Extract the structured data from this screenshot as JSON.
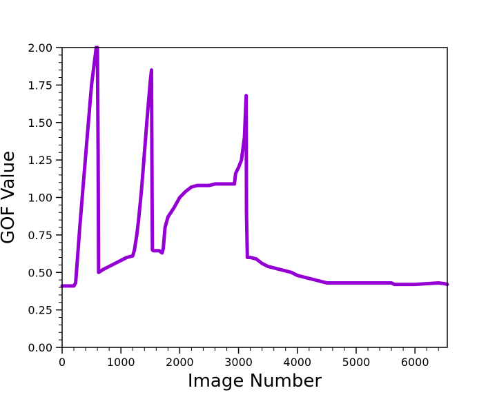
{
  "chart_data": {
    "type": "line",
    "title": "",
    "xlabel": "Image Number",
    "ylabel": "GOF Value",
    "xlim": [
      0,
      6550
    ],
    "ylim": [
      0,
      2.0
    ],
    "x_ticks": [
      0,
      1000,
      2000,
      3000,
      4000,
      5000,
      6000
    ],
    "x_tick_labels": [
      "0",
      "1000",
      "2000",
      "3000",
      "4000",
      "5000",
      "6000"
    ],
    "y_ticks": [
      0,
      0.25,
      0.5,
      0.75,
      1.0,
      1.25,
      1.5,
      1.75,
      2.0
    ],
    "y_tick_labels": [
      "0.00",
      "0.25",
      "0.50",
      "0.75",
      "1.00",
      "1.25",
      "1.50",
      "1.75",
      "2.00"
    ],
    "grid": false,
    "legend": "none",
    "line_color": "#9400d3",
    "series": [
      {
        "x": [
          0,
          100,
          200,
          230,
          300,
          400,
          500,
          580,
          600,
          612,
          620,
          700,
          800,
          900,
          1000,
          1100,
          1200,
          1230,
          1270,
          1300,
          1350,
          1400,
          1450,
          1500,
          1520,
          1530,
          1535,
          1550,
          1600,
          1650,
          1700,
          1720,
          1750,
          1800,
          1900,
          2000,
          2100,
          2200,
          2300,
          2400,
          2500,
          2600,
          2700,
          2800,
          2900,
          2930,
          2950,
          3000,
          3050,
          3100,
          3130,
          3135,
          3150,
          3200,
          3300,
          3400,
          3500,
          3600,
          3700,
          3800,
          3900,
          4000,
          4100,
          4200,
          4300,
          4400,
          4500,
          4600,
          4800,
          5000,
          5200,
          5400,
          5600,
          5650,
          5700,
          5800,
          6000,
          6200,
          6400,
          6500,
          6550
        ],
        "values": [
          0.41,
          0.41,
          0.41,
          0.43,
          0.8,
          1.28,
          1.75,
          2.0,
          2.0,
          1.3,
          0.5,
          0.52,
          0.54,
          0.56,
          0.58,
          0.6,
          0.61,
          0.65,
          0.75,
          0.85,
          1.05,
          1.3,
          1.55,
          1.78,
          1.85,
          1.0,
          0.65,
          0.645,
          0.645,
          0.645,
          0.63,
          0.66,
          0.8,
          0.87,
          0.93,
          1.0,
          1.04,
          1.07,
          1.08,
          1.08,
          1.08,
          1.09,
          1.09,
          1.09,
          1.09,
          1.09,
          1.16,
          1.2,
          1.25,
          1.4,
          1.68,
          0.9,
          0.6,
          0.6,
          0.59,
          0.56,
          0.54,
          0.53,
          0.52,
          0.51,
          0.5,
          0.48,
          0.47,
          0.46,
          0.45,
          0.44,
          0.43,
          0.43,
          0.43,
          0.43,
          0.43,
          0.43,
          0.43,
          0.42,
          0.42,
          0.42,
          0.42,
          0.425,
          0.43,
          0.425,
          0.42
        ]
      }
    ]
  }
}
